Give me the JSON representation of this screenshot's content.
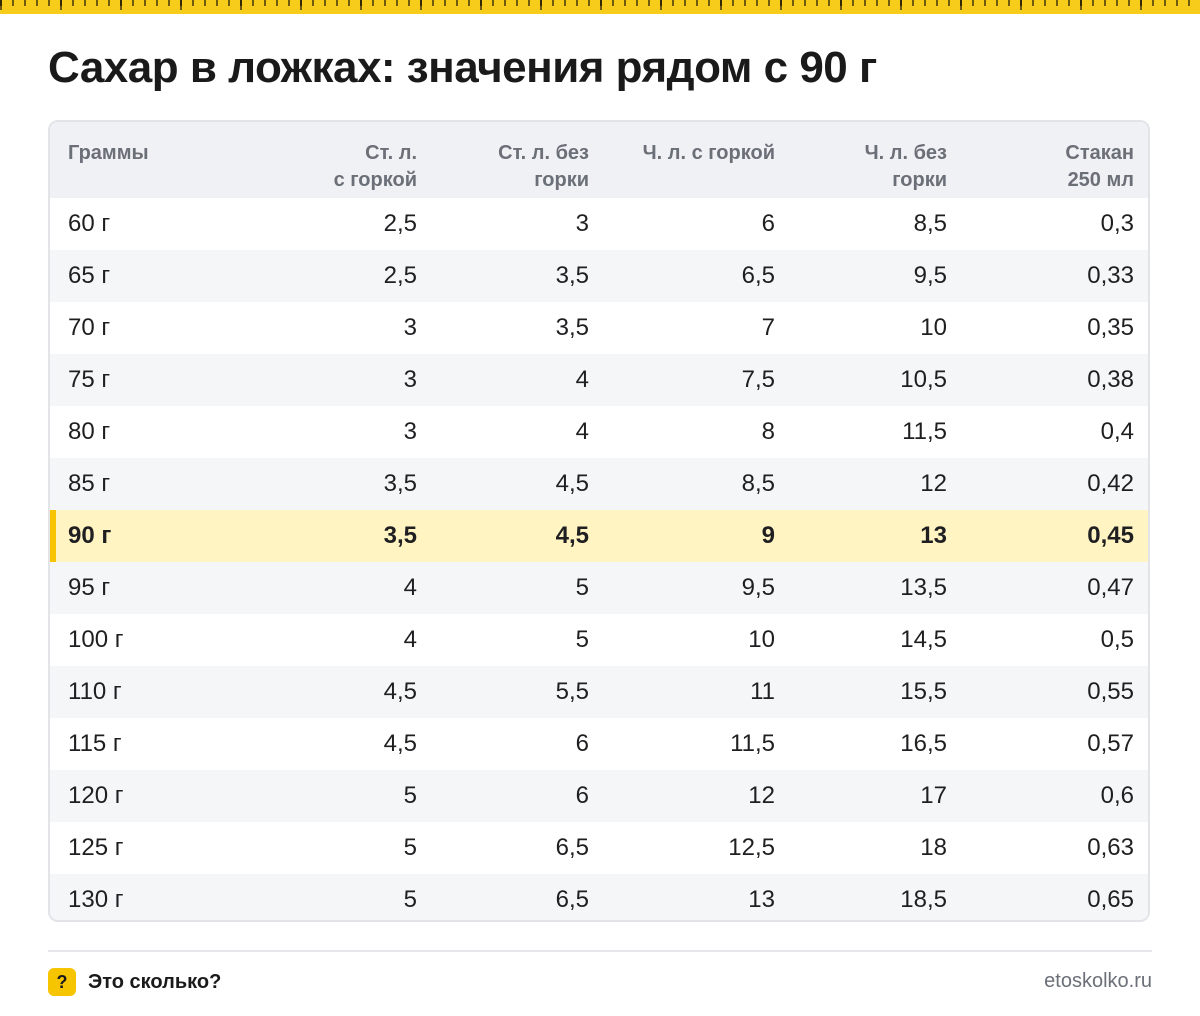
{
  "title": "Сахар в ложках: значения рядом с 90 г",
  "colors": {
    "accent": "#f7c400",
    "highlight_row": "#fff4c2",
    "header_bg": "#f0f1f4"
  },
  "table": {
    "headers": [
      [
        "Граммы",
        ""
      ],
      [
        "Ст. л.",
        "с горкой"
      ],
      [
        "Ст. л. без",
        "горки"
      ],
      [
        "Ч. л. с горкой",
        ""
      ],
      [
        "Ч. л. без",
        "горки"
      ],
      [
        "Стакан",
        "250 мл"
      ]
    ],
    "rows": [
      [
        "60 г",
        "2,5",
        "3",
        "6",
        "8,5",
        "0,3"
      ],
      [
        "65 г",
        "2,5",
        "3,5",
        "6,5",
        "9,5",
        "0,33"
      ],
      [
        "70 г",
        "3",
        "3,5",
        "7",
        "10",
        "0,35"
      ],
      [
        "75 г",
        "3",
        "4",
        "7,5",
        "10,5",
        "0,38"
      ],
      [
        "80 г",
        "3",
        "4",
        "8",
        "11,5",
        "0,4"
      ],
      [
        "85 г",
        "3,5",
        "4,5",
        "8,5",
        "12",
        "0,42"
      ],
      [
        "90 г",
        "3,5",
        "4,5",
        "9",
        "13",
        "0,45"
      ],
      [
        "95 г",
        "4",
        "5",
        "9,5",
        "13,5",
        "0,47"
      ],
      [
        "100 г",
        "4",
        "5",
        "10",
        "14,5",
        "0,5"
      ],
      [
        "110 г",
        "4,5",
        "5,5",
        "11",
        "15,5",
        "0,55"
      ],
      [
        "115 г",
        "4,5",
        "6",
        "11,5",
        "16,5",
        "0,57"
      ],
      [
        "120 г",
        "5",
        "6",
        "12",
        "17",
        "0,6"
      ],
      [
        "125 г",
        "5",
        "6,5",
        "12,5",
        "18",
        "0,63"
      ],
      [
        "130 г",
        "5",
        "6,5",
        "13",
        "18,5",
        "0,65"
      ]
    ]
  },
  "footer": {
    "brand_icon": "?",
    "brand_icon_name": "question-icon",
    "brand_name": "Это сколько?",
    "site": "etoskolko.ru"
  }
}
